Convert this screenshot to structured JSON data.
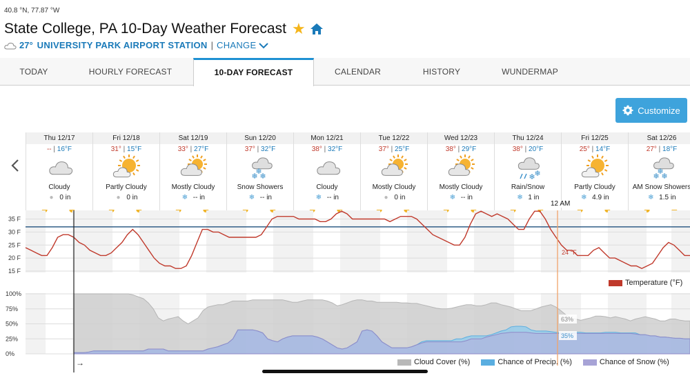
{
  "header": {
    "coords": "40.8 °N, 77.87 °W",
    "title": "State College, PA 10-Day Weather Forecast",
    "current_temp": "27°",
    "station": "UNIVERSITY PARK AIRPORT STATION",
    "separator": "|",
    "change_label": "CHANGE",
    "star_color": "#f5b51b",
    "home_color": "#1a7ab9"
  },
  "tabs": [
    {
      "label": "TODAY",
      "active": false
    },
    {
      "label": "HOURLY FORECAST",
      "active": false
    },
    {
      "label": "10-DAY FORECAST",
      "active": true
    },
    {
      "label": "CALENDAR",
      "active": false
    },
    {
      "label": "HISTORY",
      "active": false
    },
    {
      "label": "WUNDERMAP",
      "active": false
    }
  ],
  "customize_label": "Customize",
  "days": [
    {
      "date": "Thu 12/17",
      "hi": "--",
      "lo": "16°F",
      "icon": "cloudy-icon",
      "condition": "Cloudy",
      "precip_type": "rain",
      "precip": "0 in"
    },
    {
      "date": "Fri 12/18",
      "hi": "31°",
      "lo": "15°F",
      "icon": "partly-cloudy-icon",
      "condition": "Partly Cloudy",
      "precip_type": "rain",
      "precip": "0 in"
    },
    {
      "date": "Sat 12/19",
      "hi": "33°",
      "lo": "27°F",
      "icon": "mostly-cloudy-icon",
      "condition": "Mostly Cloudy",
      "precip_type": "snow",
      "precip": "-- in"
    },
    {
      "date": "Sun 12/20",
      "hi": "37°",
      "lo": "32°F",
      "icon": "snow-showers-icon",
      "condition": "Snow Showers",
      "precip_type": "snow",
      "precip": "-- in"
    },
    {
      "date": "Mon 12/21",
      "hi": "38°",
      "lo": "32°F",
      "icon": "cloudy-icon",
      "condition": "Cloudy",
      "precip_type": "snow",
      "precip": "-- in"
    },
    {
      "date": "Tue 12/22",
      "hi": "37°",
      "lo": "25°F",
      "icon": "mostly-cloudy-icon",
      "condition": "Mostly Cloudy",
      "precip_type": "rain",
      "precip": "0 in"
    },
    {
      "date": "Wed 12/23",
      "hi": "38°",
      "lo": "29°F",
      "icon": "mostly-cloudy-icon",
      "condition": "Mostly Cloudy",
      "precip_type": "snow",
      "precip": "-- in"
    },
    {
      "date": "Thu 12/24",
      "hi": "38°",
      "lo": "20°F",
      "icon": "rain-snow-icon",
      "condition": "Rain/Snow",
      "precip_type": "snow",
      "precip": "1 in"
    },
    {
      "date": "Fri 12/25",
      "hi": "25°",
      "lo": "14°F",
      "icon": "partly-cloudy-icon",
      "condition": "Partly Cloudy",
      "precip_type": "snow",
      "precip": "4.9 in"
    },
    {
      "date": "Sat 12/26",
      "hi": "27°",
      "lo": "18°F",
      "icon": "am-snow-showers-icon",
      "condition": "AM Snow Showers",
      "precip_type": "snow",
      "precip": "1.5 in"
    }
  ],
  "midnight_label": "12 AM",
  "chart_data": [
    {
      "type": "line",
      "series": [
        {
          "name": "Temperature (°F)",
          "color": "#c0392b",
          "values": [
            24,
            23,
            22,
            21,
            21,
            24,
            28,
            29,
            29,
            28,
            26,
            25,
            23,
            22,
            21,
            21,
            22,
            24,
            26,
            29,
            31,
            29,
            26,
            23,
            20,
            18,
            17,
            17,
            16,
            16,
            17,
            21,
            26,
            31,
            31,
            30,
            30,
            29,
            28,
            28,
            28,
            28,
            28,
            28,
            29,
            32,
            35,
            36,
            36,
            36,
            36,
            35,
            35,
            35,
            35,
            34,
            34,
            35,
            37,
            38,
            37,
            35,
            35,
            35,
            35,
            35,
            35,
            35,
            34,
            35,
            36,
            36,
            36,
            35,
            33,
            31,
            29,
            28,
            27,
            26,
            25,
            25,
            28,
            33,
            37,
            38,
            37,
            36,
            37,
            36,
            35,
            33,
            31,
            31,
            35,
            38,
            38,
            35,
            31,
            28,
            25,
            23,
            23,
            21,
            21,
            21,
            23,
            24,
            22,
            20,
            20,
            19,
            18,
            17,
            17,
            16,
            17,
            18,
            21,
            24,
            26,
            25,
            23,
            21,
            21
          ]
        }
      ],
      "yticks": [
        "35 F",
        "30 F",
        "25 F",
        "20 F",
        "15 F"
      ],
      "ylim": [
        15,
        37
      ],
      "hline": 32,
      "readout": "24 °F",
      "legend": "top-right-bottom"
    },
    {
      "type": "area",
      "yticks": [
        "100%",
        "75%",
        "50%",
        "25%",
        "0%"
      ],
      "ylim": [
        0,
        100
      ],
      "series": [
        {
          "name": "Cloud Cover (%)",
          "color": "#c8c8c8",
          "values": [
            100,
            100,
            100,
            100,
            100,
            100,
            100,
            100,
            100,
            100,
            100,
            100,
            98,
            95,
            92,
            85,
            75,
            60,
            55,
            58,
            60,
            62,
            55,
            50,
            55,
            60,
            72,
            78,
            80,
            82,
            82,
            85,
            88,
            88,
            88,
            88,
            90,
            90,
            90,
            90,
            90,
            90,
            90,
            88,
            86,
            86,
            88,
            90,
            90,
            90,
            90,
            88,
            85,
            80,
            82,
            85,
            88,
            90,
            90,
            88,
            88,
            86,
            86,
            86,
            86,
            86,
            85,
            85,
            84,
            84,
            82,
            80,
            78,
            76,
            75,
            75,
            76,
            78,
            80,
            82,
            82,
            80,
            80,
            82,
            85,
            85,
            82,
            80,
            78,
            75,
            72,
            72,
            72,
            75,
            78,
            80,
            82,
            78,
            72,
            65,
            60,
            58,
            56,
            58,
            60,
            63,
            63,
            62,
            60,
            62,
            60,
            58,
            55,
            58,
            60,
            62,
            60,
            58,
            55,
            55,
            58,
            58,
            56,
            55,
            55
          ]
        },
        {
          "name": "Chance of Precip. (%)",
          "color": "#6fb8e3",
          "values": [
            2,
            2,
            2,
            3,
            5,
            5,
            5,
            5,
            5,
            5,
            5,
            5,
            5,
            5,
            5,
            8,
            8,
            8,
            8,
            5,
            5,
            5,
            5,
            5,
            5,
            5,
            5,
            8,
            10,
            12,
            15,
            18,
            25,
            40,
            40,
            40,
            40,
            38,
            35,
            25,
            22,
            20,
            25,
            28,
            30,
            30,
            30,
            30,
            30,
            28,
            25,
            20,
            15,
            10,
            8,
            10,
            15,
            20,
            38,
            40,
            38,
            30,
            20,
            15,
            10,
            10,
            10,
            10,
            12,
            15,
            20,
            22,
            22,
            22,
            22,
            22,
            22,
            25,
            25,
            28,
            30,
            30,
            30,
            30,
            32,
            35,
            38,
            40,
            45,
            46,
            46,
            45,
            40,
            38,
            38,
            38,
            37,
            36,
            35,
            35,
            35,
            36,
            36,
            35,
            35,
            35,
            35,
            36,
            36,
            36,
            35,
            35,
            35,
            35,
            32,
            32,
            30,
            30,
            28,
            28,
            27,
            26,
            26,
            25,
            25
          ]
        },
        {
          "name": "Chance of Snow (%)",
          "color": "#a7a3d6",
          "values": [
            2,
            2,
            2,
            3,
            5,
            5,
            5,
            5,
            5,
            5,
            5,
            5,
            5,
            5,
            5,
            8,
            8,
            8,
            8,
            5,
            5,
            5,
            5,
            5,
            5,
            5,
            5,
            8,
            10,
            12,
            15,
            18,
            25,
            40,
            40,
            40,
            40,
            38,
            35,
            25,
            22,
            20,
            25,
            28,
            30,
            30,
            30,
            30,
            30,
            28,
            25,
            20,
            15,
            10,
            8,
            10,
            15,
            20,
            38,
            40,
            38,
            30,
            20,
            15,
            10,
            10,
            10,
            10,
            12,
            15,
            18,
            20,
            20,
            20,
            20,
            20,
            20,
            20,
            20,
            22,
            25,
            25,
            25,
            28,
            30,
            32,
            34,
            35,
            36,
            36,
            36,
            36,
            35,
            34,
            34,
            34,
            34,
            34,
            34,
            34,
            34,
            34,
            34,
            34,
            34,
            34,
            34,
            34,
            34,
            34,
            34,
            34,
            34,
            33,
            32,
            32,
            30,
            30,
            28,
            28,
            27,
            26,
            26,
            25,
            25
          ]
        }
      ],
      "readouts": [
        "63%",
        "35%"
      ],
      "legend": "bottom-right"
    }
  ],
  "legend_temp": "Temperature (°F)",
  "legend_precip": [
    "Cloud Cover (%)",
    "Chance of Precip. (%)",
    "Chance of Snow (%)"
  ],
  "arrow_glyph": "→"
}
